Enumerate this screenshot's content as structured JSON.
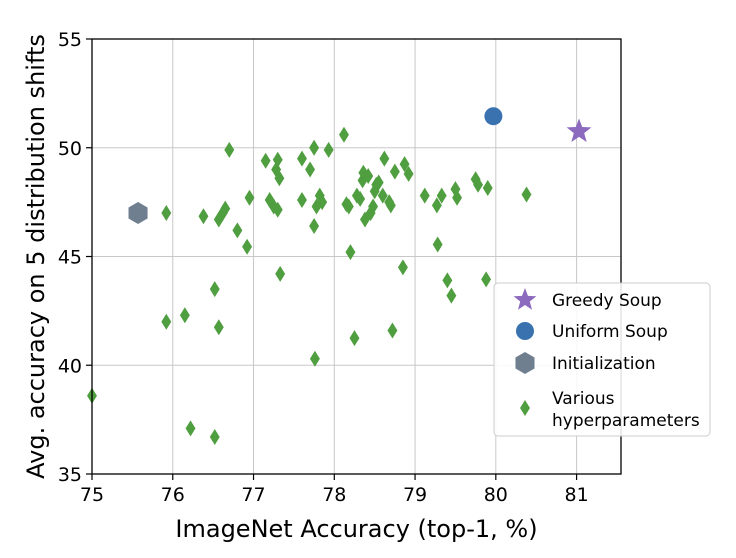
{
  "chart_data": {
    "type": "scatter",
    "title": "",
    "xlabel": "ImageNet Accuracy (top-1, %)",
    "ylabel": "Avg. accuracy on 5 distribution shifts",
    "xlim": [
      75,
      81.55
    ],
    "ylim": [
      35,
      55
    ],
    "xticks": [
      75,
      76,
      77,
      78,
      79,
      80,
      81
    ],
    "yticks": [
      35,
      40,
      45,
      50,
      55
    ],
    "grid": true,
    "legend_position": "lower-right",
    "series": [
      {
        "name": "Greedy Soup",
        "marker": "star",
        "color": "#8c6bbf",
        "points": [
          [
            81.03,
            50.75
          ]
        ]
      },
      {
        "name": "Uniform Soup",
        "marker": "circle",
        "color": "#3a72b0",
        "points": [
          [
            79.97,
            51.45
          ]
        ]
      },
      {
        "name": "Initialization",
        "marker": "hexagon",
        "color": "#6f7f8f",
        "points": [
          [
            75.57,
            47.0
          ]
        ]
      },
      {
        "name": "Various\nhyperparameters",
        "marker": "diamond",
        "color": "#4f9e3f",
        "points": [
          [
            75.0,
            38.6
          ],
          [
            75.92,
            47.0
          ],
          [
            75.92,
            42.0
          ],
          [
            76.15,
            42.3
          ],
          [
            76.22,
            37.1
          ],
          [
            76.38,
            46.85
          ],
          [
            76.52,
            43.5
          ],
          [
            76.52,
            36.7
          ],
          [
            76.57,
            46.7
          ],
          [
            76.57,
            41.75
          ],
          [
            76.62,
            47.0
          ],
          [
            76.65,
            47.2
          ],
          [
            76.7,
            49.9
          ],
          [
            76.8,
            46.2
          ],
          [
            76.92,
            45.45
          ],
          [
            76.95,
            47.7
          ],
          [
            77.15,
            49.4
          ],
          [
            77.2,
            47.6
          ],
          [
            77.25,
            47.3
          ],
          [
            77.28,
            49.0
          ],
          [
            77.3,
            49.45
          ],
          [
            77.3,
            47.15
          ],
          [
            77.32,
            48.6
          ],
          [
            77.33,
            44.2
          ],
          [
            77.6,
            49.5
          ],
          [
            77.6,
            47.6
          ],
          [
            77.7,
            49.0
          ],
          [
            77.75,
            50.0
          ],
          [
            77.75,
            46.4
          ],
          [
            77.76,
            40.3
          ],
          [
            77.78,
            47.3
          ],
          [
            77.82,
            47.8
          ],
          [
            77.85,
            47.5
          ],
          [
            77.93,
            49.9
          ],
          [
            78.12,
            50.6
          ],
          [
            78.15,
            47.4
          ],
          [
            78.18,
            47.3
          ],
          [
            78.2,
            45.2
          ],
          [
            78.25,
            41.25
          ],
          [
            78.28,
            47.8
          ],
          [
            78.32,
            47.65
          ],
          [
            78.35,
            48.5
          ],
          [
            78.36,
            48.85
          ],
          [
            78.38,
            46.7
          ],
          [
            78.42,
            48.7
          ],
          [
            78.45,
            47.0
          ],
          [
            78.48,
            47.3
          ],
          [
            78.5,
            48.0
          ],
          [
            78.52,
            48.3
          ],
          [
            78.55,
            48.4
          ],
          [
            78.6,
            47.8
          ],
          [
            78.62,
            49.5
          ],
          [
            78.68,
            47.5
          ],
          [
            78.7,
            47.35
          ],
          [
            78.72,
            41.6
          ],
          [
            78.75,
            48.9
          ],
          [
            78.85,
            44.5
          ],
          [
            78.87,
            49.25
          ],
          [
            78.92,
            48.8
          ],
          [
            79.12,
            47.8
          ],
          [
            79.27,
            47.35
          ],
          [
            79.28,
            45.55
          ],
          [
            79.33,
            47.8
          ],
          [
            79.4,
            43.9
          ],
          [
            79.45,
            43.2
          ],
          [
            79.5,
            48.1
          ],
          [
            79.52,
            47.7
          ],
          [
            79.75,
            48.55
          ],
          [
            79.78,
            48.3
          ],
          [
            79.88,
            43.95
          ],
          [
            79.9,
            48.15
          ],
          [
            80.38,
            47.85
          ]
        ]
      }
    ]
  }
}
